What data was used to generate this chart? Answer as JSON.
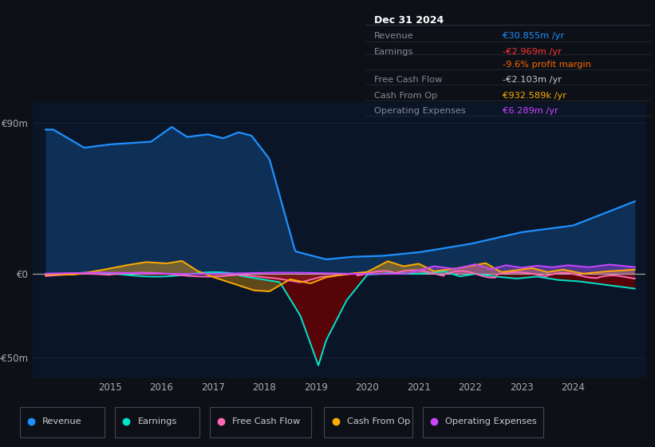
{
  "background_color": "#0d1117",
  "plot_bg": "#0a1628",
  "info_box": {
    "header": "Dec 31 2024",
    "rows": [
      {
        "label": "Revenue",
        "value": "€30.855m /yr",
        "value_color": "#1e90ff"
      },
      {
        "label": "Earnings",
        "value": "-€2.969m /yr",
        "value_color": "#ff3333"
      },
      {
        "label": "",
        "value": "-9.6% profit margin",
        "value_color": "#ff6600"
      },
      {
        "label": "Free Cash Flow",
        "value": "-€2.103m /yr",
        "value_color": "#cccccc"
      },
      {
        "label": "Cash From Op",
        "value": "€932.589k /yr",
        "value_color": "#ffaa00"
      },
      {
        "label": "Operating Expenses",
        "value": "€6.289m /yr",
        "value_color": "#cc44ff"
      }
    ]
  },
  "ylim": [
    -62,
    102
  ],
  "ytick_vals": [
    -50,
    0,
    90
  ],
  "ytick_labels": [
    "-€50m",
    "€0",
    "€90m"
  ],
  "xlim": [
    2013.5,
    2025.4
  ],
  "xticks": [
    2015,
    2016,
    2017,
    2018,
    2019,
    2020,
    2021,
    2022,
    2023,
    2024
  ],
  "grid_color": "#1a2a40",
  "zero_line_color": "#cccccc",
  "series": {
    "revenue": {
      "color": "#1e90ff",
      "label": "Revenue",
      "lw": 1.6
    },
    "earnings": {
      "color": "#00e5cc",
      "label": "Earnings",
      "lw": 1.4
    },
    "fcf": {
      "color": "#ff69b4",
      "label": "Free Cash Flow",
      "lw": 1.4
    },
    "cashfromop": {
      "color": "#ffaa00",
      "label": "Cash From Op",
      "lw": 1.4
    },
    "opex": {
      "color": "#cc44ff",
      "label": "Operating Expenses",
      "lw": 1.4
    }
  }
}
